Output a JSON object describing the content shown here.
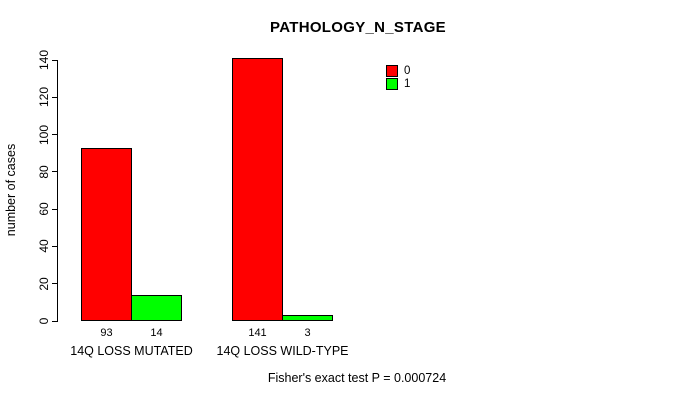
{
  "chart_data": {
    "type": "bar",
    "title": "PATHOLOGY_N_STAGE",
    "ylabel": "number of cases",
    "xlabel": "",
    "categories": [
      "14Q LOSS MUTATED",
      "14Q LOSS WILD-TYPE"
    ],
    "series": [
      {
        "name": "0",
        "color": "#FF0000",
        "values": [
          93,
          141
        ]
      },
      {
        "name": "1",
        "color": "#00FF00",
        "values": [
          14,
          3
        ]
      }
    ],
    "ylim": [
      0,
      140
    ],
    "yticks": [
      0,
      20,
      40,
      60,
      80,
      100,
      120,
      140
    ],
    "bar_value_labels": [
      [
        "93",
        "141"
      ],
      [
        "14",
        "3"
      ]
    ],
    "grid": false,
    "legend_position": "top-right",
    "annotation": "Fisher's exact test P = 0.000724"
  }
}
